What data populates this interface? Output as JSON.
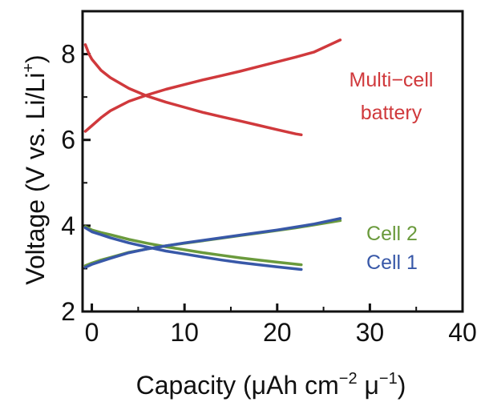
{
  "chart_data": {
    "type": "line",
    "xlabel": {
      "main": "Capacity (μAh cm",
      "sup1": "−2",
      "mid": " μ",
      "sup2": "−1",
      "end": ")"
    },
    "ylabel": {
      "main": "Voltage (V vs. Li/Li",
      "sup": "+",
      "end": ")"
    },
    "xlim": [
      -1,
      40
    ],
    "ylim": [
      2,
      9
    ],
    "xticks": [
      0,
      10,
      20,
      30,
      40
    ],
    "yticks": [
      2,
      4,
      6,
      8
    ],
    "grid": false,
    "series": [
      {
        "name": "Multi−cell battery",
        "color": "#d0393c",
        "charge": {
          "x": [
            -0.7,
            0,
            1,
            2,
            4,
            6,
            8,
            10,
            12,
            14,
            16,
            18,
            20,
            22,
            24,
            26,
            26.8
          ],
          "y": [
            6.2,
            6.33,
            6.52,
            6.68,
            6.9,
            7.05,
            7.18,
            7.29,
            7.4,
            7.5,
            7.6,
            7.71,
            7.82,
            7.93,
            8.05,
            8.25,
            8.33
          ]
        },
        "discharge": {
          "x": [
            -0.7,
            -0.3,
            0,
            1,
            2,
            4,
            6,
            8,
            10,
            12,
            14,
            16,
            18,
            20,
            22,
            22.6
          ],
          "y": [
            8.22,
            8.0,
            7.88,
            7.62,
            7.45,
            7.2,
            7.02,
            6.88,
            6.76,
            6.64,
            6.54,
            6.44,
            6.34,
            6.24,
            6.14,
            6.12
          ]
        }
      },
      {
        "name": "Cell 2",
        "color": "#6a9a3c",
        "charge": {
          "x": [
            -0.7,
            0,
            1,
            2,
            4,
            6,
            8,
            10,
            12,
            14,
            16,
            18,
            20,
            22,
            24,
            26.8
          ],
          "y": [
            3.07,
            3.13,
            3.2,
            3.26,
            3.38,
            3.46,
            3.53,
            3.59,
            3.65,
            3.71,
            3.77,
            3.83,
            3.89,
            3.95,
            4.02,
            4.12
          ]
        },
        "discharge": {
          "x": [
            -0.7,
            0,
            1,
            2,
            4,
            6,
            8,
            10,
            12,
            14,
            16,
            18,
            20,
            22.6
          ],
          "y": [
            3.98,
            3.9,
            3.84,
            3.79,
            3.68,
            3.59,
            3.51,
            3.44,
            3.37,
            3.31,
            3.25,
            3.2,
            3.15,
            3.09
          ]
        }
      },
      {
        "name": "Cell 1",
        "color": "#3858a8",
        "charge": {
          "x": [
            -0.7,
            0,
            1,
            2,
            4,
            6,
            8,
            10,
            12,
            14,
            16,
            18,
            20,
            22,
            24,
            26.8
          ],
          "y": [
            3.03,
            3.1,
            3.17,
            3.24,
            3.37,
            3.46,
            3.53,
            3.6,
            3.66,
            3.72,
            3.78,
            3.84,
            3.9,
            3.97,
            4.04,
            4.17
          ]
        },
        "discharge": {
          "x": [
            -0.7,
            0,
            1,
            2,
            4,
            6,
            8,
            10,
            12,
            14,
            16,
            18,
            20,
            22.6
          ],
          "y": [
            3.95,
            3.86,
            3.79,
            3.72,
            3.6,
            3.5,
            3.41,
            3.34,
            3.27,
            3.2,
            3.14,
            3.09,
            3.04,
            2.98
          ]
        }
      }
    ]
  }
}
